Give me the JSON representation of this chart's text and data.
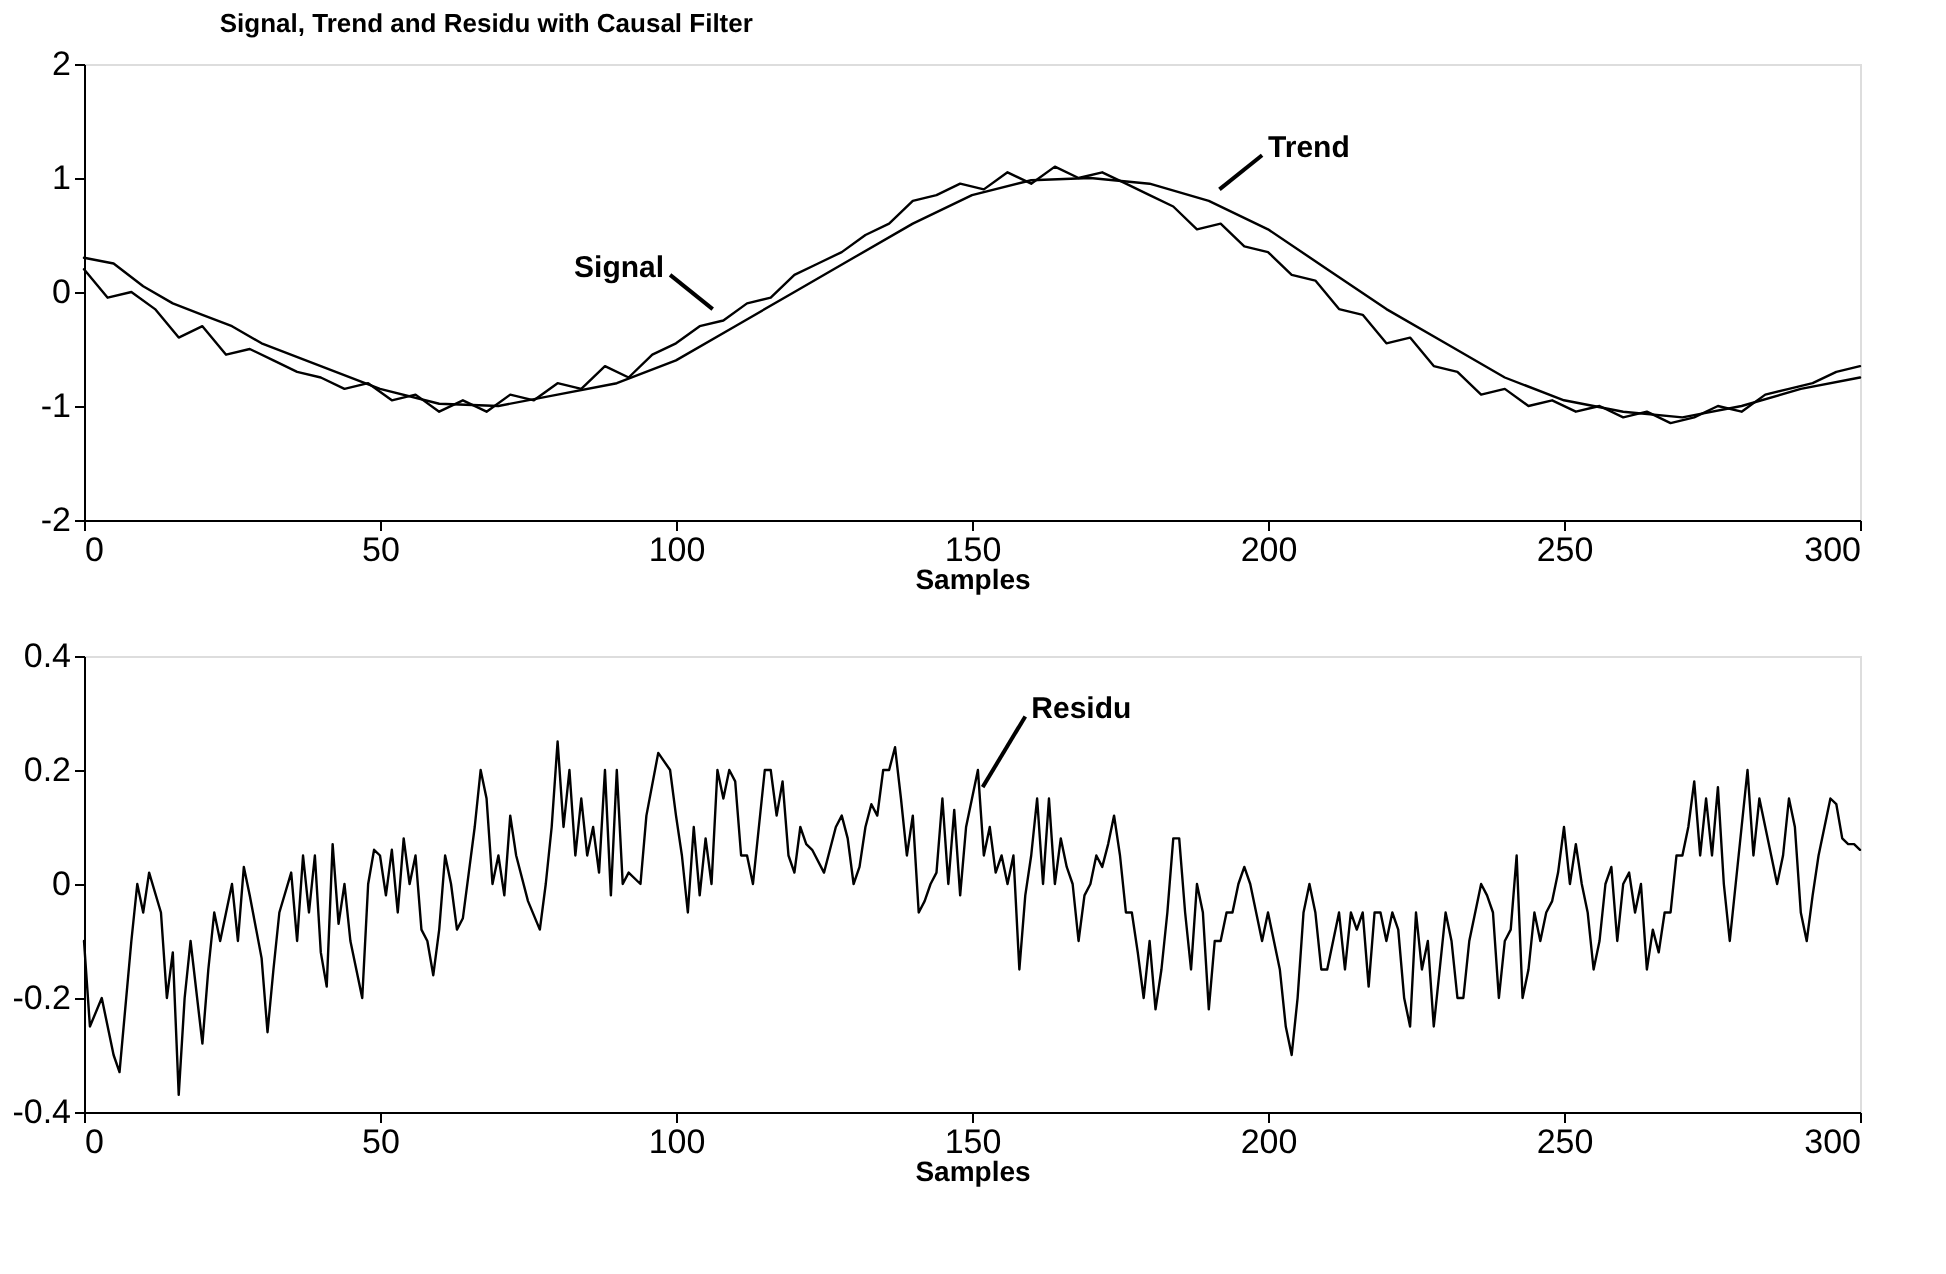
{
  "chart_data": [
    {
      "type": "line",
      "title": "Signal, Trend and Residu with Causal Filter",
      "xlabel": "Samples",
      "xlim": [
        0,
        300
      ],
      "xticks": [
        0,
        50,
        100,
        150,
        200,
        250,
        300
      ],
      "ylim": [
        -2,
        2
      ],
      "yticks": [
        -2,
        -1,
        0,
        1,
        2
      ],
      "grid": false,
      "legend": false,
      "series": [
        {
          "name": "Signal",
          "color": "#000000",
          "x": [
            0,
            4,
            8,
            12,
            16,
            20,
            24,
            28,
            32,
            36,
            40,
            44,
            48,
            52,
            56,
            60,
            64,
            68,
            72,
            76,
            80,
            84,
            88,
            92,
            96,
            100,
            104,
            108,
            112,
            116,
            120,
            124,
            128,
            132,
            136,
            140,
            144,
            148,
            152,
            156,
            160,
            164,
            168,
            172,
            176,
            180,
            184,
            188,
            192,
            196,
            200,
            204,
            208,
            212,
            216,
            220,
            224,
            228,
            232,
            236,
            240,
            244,
            248,
            252,
            256,
            260,
            264,
            268,
            272,
            276,
            280,
            284,
            288,
            292,
            296,
            300
          ],
          "values": [
            0.2,
            -0.05,
            0.0,
            -0.15,
            -0.4,
            -0.3,
            -0.55,
            -0.5,
            -0.6,
            -0.7,
            -0.75,
            -0.85,
            -0.8,
            -0.95,
            -0.9,
            -1.05,
            -0.95,
            -1.05,
            -0.9,
            -0.95,
            -0.8,
            -0.85,
            -0.65,
            -0.75,
            -0.55,
            -0.45,
            -0.3,
            -0.25,
            -0.1,
            -0.05,
            0.15,
            0.25,
            0.35,
            0.5,
            0.6,
            0.8,
            0.85,
            0.95,
            0.9,
            1.05,
            0.95,
            1.1,
            1.0,
            1.05,
            0.95,
            0.85,
            0.75,
            0.55,
            0.6,
            0.4,
            0.35,
            0.15,
            0.1,
            -0.15,
            -0.2,
            -0.45,
            -0.4,
            -0.65,
            -0.7,
            -0.9,
            -0.85,
            -1.0,
            -0.95,
            -1.05,
            -1.0,
            -1.1,
            -1.05,
            -1.15,
            -1.1,
            -1.0,
            -1.05,
            -0.9,
            -0.85,
            -0.8,
            -0.7,
            -0.65
          ]
        },
        {
          "name": "Trend",
          "color": "#000000",
          "x": [
            0,
            5,
            10,
            15,
            20,
            25,
            30,
            40,
            50,
            60,
            70,
            80,
            90,
            100,
            110,
            120,
            130,
            140,
            150,
            160,
            170,
            180,
            190,
            200,
            210,
            220,
            230,
            240,
            250,
            260,
            270,
            280,
            290,
            300
          ],
          "values": [
            0.3,
            0.25,
            0.05,
            -0.1,
            -0.2,
            -0.3,
            -0.45,
            -0.65,
            -0.85,
            -0.98,
            -1.0,
            -0.9,
            -0.8,
            -0.6,
            -0.3,
            0.0,
            0.3,
            0.6,
            0.85,
            0.98,
            1.0,
            0.95,
            0.8,
            0.55,
            0.2,
            -0.15,
            -0.45,
            -0.75,
            -0.95,
            -1.05,
            -1.1,
            -1.0,
            -0.85,
            -0.75
          ]
        }
      ]
    },
    {
      "type": "line",
      "xlabel": "Samples",
      "xlim": [
        0,
        300
      ],
      "xticks": [
        0,
        50,
        100,
        150,
        200,
        250,
        300
      ],
      "ylim": [
        -0.4,
        0.4
      ],
      "yticks": [
        -0.4,
        -0.2,
        0,
        0.2,
        0.4
      ],
      "grid": false,
      "legend": false,
      "series": [
        {
          "name": "Residu",
          "color": "#000000",
          "x": [
            0,
            1,
            3,
            5,
            6,
            8,
            9,
            10,
            11,
            13,
            14,
            15,
            16,
            17,
            18,
            20,
            21,
            22,
            23,
            25,
            26,
            27,
            28,
            30,
            31,
            32,
            33,
            35,
            36,
            37,
            38,
            39,
            40,
            41,
            42,
            43,
            44,
            45,
            46,
            47,
            48,
            49,
            50,
            51,
            52,
            53,
            54,
            55,
            56,
            57,
            58,
            59,
            60,
            61,
            62,
            63,
            64,
            65,
            66,
            67,
            68,
            69,
            70,
            71,
            72,
            73,
            75,
            77,
            78,
            79,
            80,
            81,
            82,
            83,
            84,
            85,
            86,
            87,
            88,
            89,
            90,
            91,
            92,
            94,
            95,
            97,
            99,
            100,
            101,
            102,
            103,
            104,
            105,
            106,
            107,
            108,
            109,
            110,
            111,
            112,
            113,
            114,
            115,
            116,
            117,
            118,
            119,
            120,
            121,
            122,
            123,
            125,
            126,
            127,
            128,
            129,
            130,
            131,
            132,
            133,
            134,
            135,
            136,
            137,
            138,
            139,
            140,
            141,
            142,
            143,
            144,
            145,
            146,
            147,
            148,
            149,
            150,
            151,
            152,
            153,
            154,
            155,
            156,
            157,
            158,
            159,
            160,
            161,
            162,
            163,
            164,
            165,
            166,
            167,
            168,
            169,
            170,
            171,
            172,
            173,
            174,
            175,
            176,
            177,
            178,
            179,
            180,
            181,
            182,
            183,
            184,
            185,
            186,
            187,
            188,
            189,
            190,
            191,
            192,
            193,
            194,
            195,
            196,
            197,
            198,
            199,
            200,
            201,
            202,
            203,
            204,
            205,
            206,
            207,
            208,
            209,
            210,
            211,
            212,
            213,
            214,
            215,
            216,
            217,
            218,
            219,
            220,
            221,
            222,
            223,
            224,
            225,
            226,
            227,
            228,
            229,
            230,
            231,
            232,
            233,
            234,
            235,
            236,
            237,
            238,
            239,
            240,
            241,
            242,
            243,
            244,
            245,
            246,
            247,
            248,
            249,
            250,
            251,
            252,
            253,
            254,
            255,
            256,
            257,
            258,
            259,
            260,
            261,
            262,
            263,
            264,
            265,
            266,
            267,
            268,
            269,
            270,
            271,
            272,
            273,
            274,
            275,
            276,
            277,
            278,
            279,
            280,
            281,
            282,
            283,
            284,
            285,
            286,
            287,
            288,
            289,
            290,
            291,
            292,
            293,
            294,
            295,
            296,
            297,
            298,
            299,
            300
          ],
          "values": [
            -0.1,
            -0.25,
            -0.2,
            -0.3,
            -0.33,
            -0.1,
            0.0,
            -0.05,
            0.02,
            -0.05,
            -0.2,
            -0.12,
            -0.37,
            -0.2,
            -0.1,
            -0.28,
            -0.15,
            -0.05,
            -0.1,
            0.0,
            -0.1,
            0.03,
            -0.02,
            -0.13,
            -0.26,
            -0.15,
            -0.05,
            0.02,
            -0.1,
            0.05,
            -0.05,
            0.05,
            -0.12,
            -0.18,
            0.07,
            -0.07,
            0.0,
            -0.1,
            -0.15,
            -0.2,
            0.0,
            0.06,
            0.05,
            -0.02,
            0.06,
            -0.05,
            0.08,
            0.0,
            0.05,
            -0.08,
            -0.1,
            -0.16,
            -0.08,
            0.05,
            0.0,
            -0.08,
            -0.06,
            0.02,
            0.1,
            0.2,
            0.15,
            0.0,
            0.05,
            -0.02,
            0.12,
            0.05,
            -0.03,
            -0.08,
            0.0,
            0.1,
            0.25,
            0.1,
            0.2,
            0.05,
            0.15,
            0.05,
            0.1,
            0.02,
            0.2,
            -0.02,
            0.2,
            0.0,
            0.02,
            0.0,
            0.12,
            0.23,
            0.2,
            0.12,
            0.05,
            -0.05,
            0.1,
            -0.02,
            0.08,
            0.0,
            0.2,
            0.15,
            0.2,
            0.18,
            0.05,
            0.05,
            0.0,
            0.1,
            0.2,
            0.2,
            0.12,
            0.18,
            0.05,
            0.02,
            0.1,
            0.07,
            0.06,
            0.02,
            0.06,
            0.1,
            0.12,
            0.08,
            0.0,
            0.03,
            0.1,
            0.14,
            0.12,
            0.2,
            0.2,
            0.24,
            0.15,
            0.05,
            0.12,
            -0.05,
            -0.03,
            0.0,
            0.02,
            0.15,
            0.0,
            0.13,
            -0.02,
            0.1,
            0.15,
            0.2,
            0.05,
            0.1,
            0.02,
            0.05,
            0.0,
            0.05,
            -0.15,
            -0.02,
            0.05,
            0.15,
            0.0,
            0.15,
            0.0,
            0.08,
            0.03,
            0.0,
            -0.1,
            -0.02,
            0.0,
            0.05,
            0.03,
            0.07,
            0.12,
            0.05,
            -0.05,
            -0.05,
            -0.12,
            -0.2,
            -0.1,
            -0.22,
            -0.15,
            -0.05,
            0.08,
            0.08,
            -0.05,
            -0.15,
            0.0,
            -0.05,
            -0.22,
            -0.1,
            -0.1,
            -0.05,
            -0.05,
            0.0,
            0.03,
            0.0,
            -0.05,
            -0.1,
            -0.05,
            -0.1,
            -0.15,
            -0.25,
            -0.3,
            -0.2,
            -0.05,
            0.0,
            -0.05,
            -0.15,
            -0.15,
            -0.1,
            -0.05,
            -0.15,
            -0.05,
            -0.08,
            -0.05,
            -0.18,
            -0.05,
            -0.05,
            -0.1,
            -0.05,
            -0.08,
            -0.2,
            -0.25,
            -0.05,
            -0.15,
            -0.1,
            -0.25,
            -0.15,
            -0.05,
            -0.1,
            -0.2,
            -0.2,
            -0.1,
            -0.05,
            0.0,
            -0.02,
            -0.05,
            -0.2,
            -0.1,
            -0.08,
            0.05,
            -0.2,
            -0.15,
            -0.05,
            -0.1,
            -0.05,
            -0.03,
            0.02,
            0.1,
            0.0,
            0.07,
            0.0,
            -0.05,
            -0.15,
            -0.1,
            0.0,
            0.03,
            -0.1,
            0.0,
            0.02,
            -0.05,
            0.0,
            -0.15,
            -0.08,
            -0.12,
            -0.05,
            -0.05,
            0.05,
            0.05,
            0.1,
            0.18,
            0.05,
            0.15,
            0.05,
            0.17,
            0.0,
            -0.1,
            0.0,
            0.1,
            0.2,
            0.05,
            0.15,
            0.1,
            0.05,
            0.0,
            0.05,
            0.15,
            0.1,
            -0.05,
            -0.1,
            -0.02,
            0.05,
            0.1,
            0.15,
            0.14,
            0.08,
            0.07,
            0.07,
            0.06
          ]
        }
      ]
    }
  ]
}
